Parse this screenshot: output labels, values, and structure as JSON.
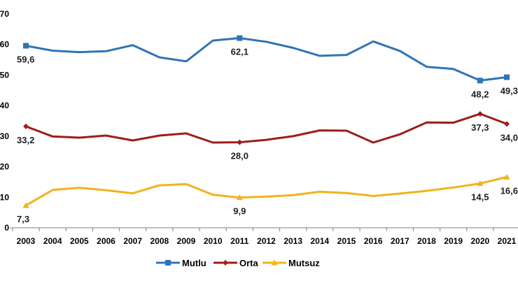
{
  "chart_data": {
    "type": "line",
    "title": "",
    "xlabel": "",
    "ylabel": "",
    "ylim": [
      0,
      70
    ],
    "y_ticks": [
      "0",
      "10",
      "20",
      "30",
      "40",
      "50",
      "60",
      "70"
    ],
    "grid": false,
    "legend_position": "bottom",
    "categories": [
      "2003",
      "2004",
      "2005",
      "2006",
      "2007",
      "2008",
      "2009",
      "2010",
      "2011",
      "2012",
      "2013",
      "2014",
      "2015",
      "2016",
      "2017",
      "2018",
      "2019",
      "2020",
      "2021"
    ],
    "series": [
      {
        "name": "Mutlu",
        "color": "#2e75b6",
        "marker": "square",
        "values": [
          59.6,
          58.0,
          57.5,
          57.8,
          59.8,
          55.8,
          54.5,
          61.3,
          62.1,
          60.9,
          58.9,
          56.3,
          56.6,
          61.0,
          57.9,
          52.7,
          52.0,
          48.2,
          49.3
        ]
      },
      {
        "name": "Orta",
        "color": "#9e1c1c",
        "marker": "diamond",
        "values": [
          33.2,
          29.9,
          29.5,
          30.2,
          28.6,
          30.2,
          30.9,
          27.9,
          28.0,
          28.8,
          30.0,
          31.9,
          31.8,
          27.9,
          30.6,
          34.5,
          34.4,
          37.3,
          34.0
        ]
      },
      {
        "name": "Mutsuz",
        "color": "#f2b31b",
        "marker": "triangle",
        "values": [
          7.3,
          12.4,
          13.1,
          12.3,
          11.3,
          13.9,
          14.3,
          10.8,
          9.9,
          10.2,
          10.7,
          11.8,
          11.4,
          10.4,
          11.2,
          12.1,
          13.2,
          14.5,
          16.6
        ]
      }
    ],
    "data_labels": [
      {
        "series": 0,
        "index": 0,
        "text": "59,6",
        "pos": "below"
      },
      {
        "series": 0,
        "index": 8,
        "text": "62,1",
        "pos": "below"
      },
      {
        "series": 0,
        "index": 17,
        "text": "48,2",
        "pos": "below"
      },
      {
        "series": 0,
        "index": 18,
        "text": "49,3",
        "pos": "below"
      },
      {
        "series": 1,
        "index": 0,
        "text": "33,2",
        "pos": "below"
      },
      {
        "series": 1,
        "index": 8,
        "text": "28,0",
        "pos": "below"
      },
      {
        "series": 1,
        "index": 17,
        "text": "37,3",
        "pos": "below"
      },
      {
        "series": 1,
        "index": 18,
        "text": "34,0",
        "pos": "below"
      },
      {
        "series": 2,
        "index": 0,
        "text": "7,3",
        "pos": "below"
      },
      {
        "series": 2,
        "index": 8,
        "text": "9,9",
        "pos": "below"
      },
      {
        "series": 2,
        "index": 17,
        "text": "14,5",
        "pos": "below"
      },
      {
        "series": 2,
        "index": 18,
        "text": "16,6",
        "pos": "below"
      }
    ]
  }
}
